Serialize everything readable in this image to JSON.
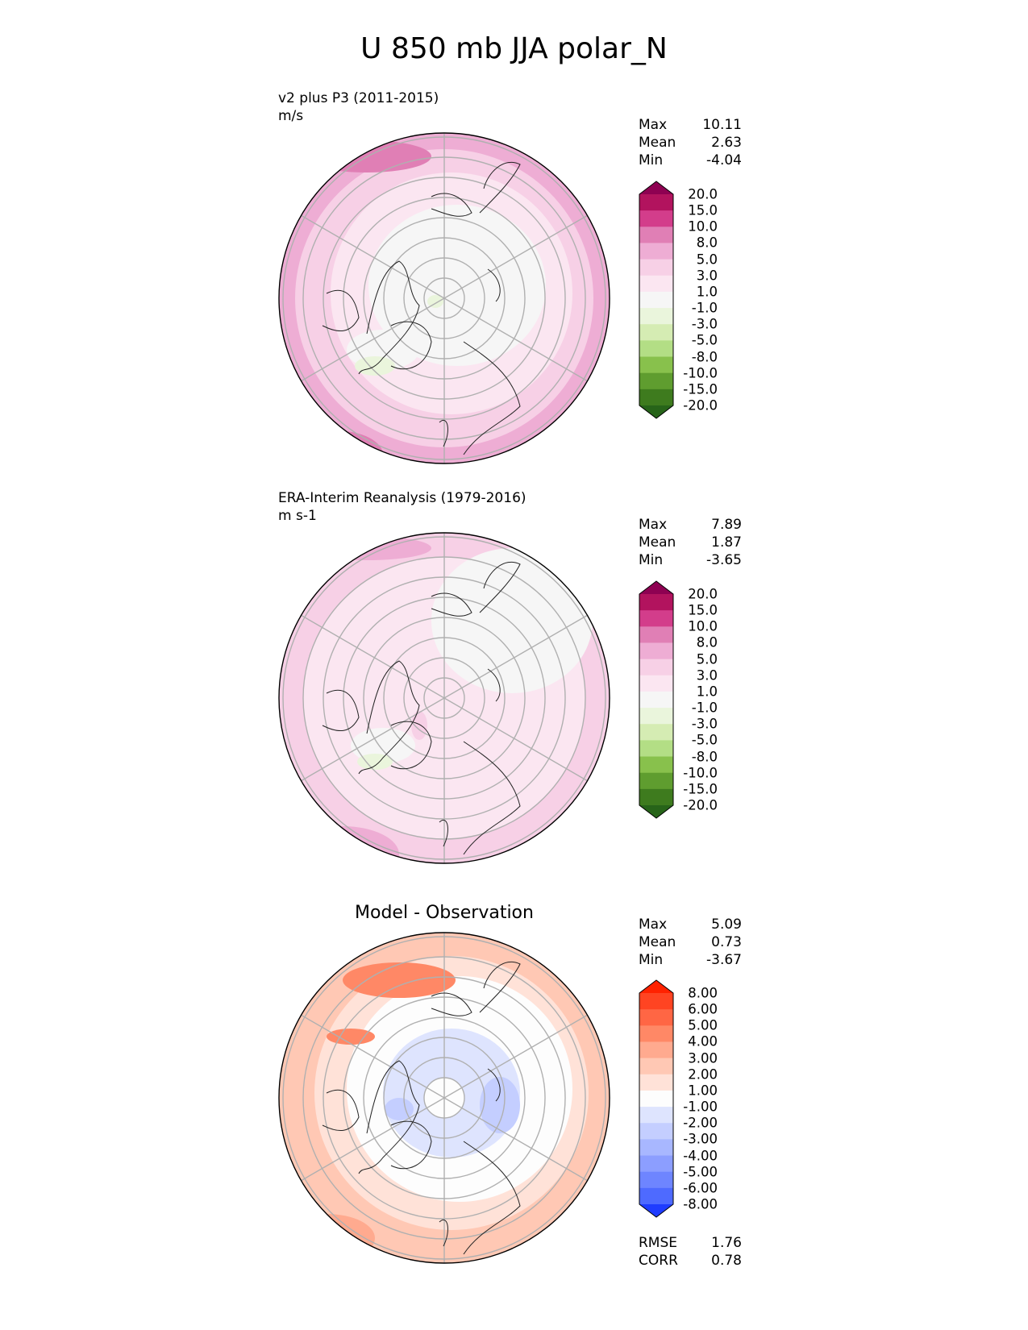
{
  "figure": {
    "title": "U 850 mb JJA polar_N"
  },
  "panels": [
    {
      "title_line1": "v2 plus P3 (2011-2015)",
      "title_line2": "m/s",
      "center_title": "",
      "stats": {
        "max_label": "Max",
        "max": "10.11",
        "mean_label": "Mean",
        "mean": "2.63",
        "min_label": "Min",
        "min": "-4.04"
      },
      "colorbar": {
        "labels": [
          "20.0",
          "15.0",
          "10.0",
          "8.0",
          "5.0",
          "3.0",
          "1.0",
          "-1.0",
          "-3.0",
          "-5.0",
          "-8.0",
          "-10.0",
          "-15.0",
          "-20.0"
        ],
        "colors": [
          "#8e0152",
          "#b2135e",
          "#d33d8b",
          "#e07fb5",
          "#eeadd4",
          "#f7d0e6",
          "#fbe6f1",
          "#f6f6f6",
          "#eaf5dc",
          "#d5ecb3",
          "#b3de85",
          "#88c14c",
          "#5f9d2f",
          "#3e7b1e",
          "#276419"
        ]
      }
    },
    {
      "title_line1": "ERA-Interim Reanalysis (1979-2016)",
      "title_line2": "m s-1",
      "center_title": "",
      "stats": {
        "max_label": "Max",
        "max": "7.89",
        "mean_label": "Mean",
        "mean": "1.87",
        "min_label": "Min",
        "min": "-3.65"
      },
      "colorbar": {
        "labels": [
          "20.0",
          "15.0",
          "10.0",
          "8.0",
          "5.0",
          "3.0",
          "1.0",
          "-1.0",
          "-3.0",
          "-5.0",
          "-8.0",
          "-10.0",
          "-15.0",
          "-20.0"
        ],
        "colors": [
          "#8e0152",
          "#b2135e",
          "#d33d8b",
          "#e07fb5",
          "#eeadd4",
          "#f7d0e6",
          "#fbe6f1",
          "#f6f6f6",
          "#eaf5dc",
          "#d5ecb3",
          "#b3de85",
          "#88c14c",
          "#5f9d2f",
          "#3e7b1e",
          "#276419"
        ]
      }
    },
    {
      "title_line1": "",
      "title_line2": "",
      "center_title": "Model - Observation",
      "stats": {
        "max_label": "Max",
        "max": "5.09",
        "mean_label": "Mean",
        "mean": "0.73",
        "min_label": "Min",
        "min": "-3.67"
      },
      "colorbar": {
        "labels": [
          "8.00",
          "6.00",
          "5.00",
          "4.00",
          "3.00",
          "2.00",
          "1.00",
          "-1.00",
          "-2.00",
          "-3.00",
          "-4.00",
          "-5.00",
          "-6.00",
          "-8.00"
        ],
        "colors": [
          "#ff2200",
          "#ff4422",
          "#ff6644",
          "#ff8866",
          "#ffaa8f",
          "#ffc8b4",
          "#ffe2d8",
          "#fdfdfd",
          "#dee4fe",
          "#c4ceff",
          "#a8b7ff",
          "#8c9eff",
          "#6e85ff",
          "#4e6aff",
          "#1f3cff"
        ]
      },
      "metrics": {
        "rmse_label": "RMSE",
        "rmse": "1.76",
        "corr_label": "CORR",
        "corr": "0.78"
      }
    }
  ],
  "chart_data": [
    {
      "type": "heatmap",
      "projection": "north-polar-stereographic",
      "title": "v2 plus P3 (2011-2015)",
      "units": "m/s",
      "variable": "U 850 mb JJA",
      "max": 10.11,
      "mean": 2.63,
      "min": -4.04,
      "levels": [
        -20,
        -15,
        -10,
        -8,
        -5,
        -3,
        -1,
        1,
        3,
        5,
        8,
        10,
        15,
        20
      ]
    },
    {
      "type": "heatmap",
      "projection": "north-polar-stereographic",
      "title": "ERA-Interim Reanalysis (1979-2016)",
      "units": "m s-1",
      "variable": "U 850 mb JJA",
      "max": 7.89,
      "mean": 1.87,
      "min": -3.65,
      "levels": [
        -20,
        -15,
        -10,
        -8,
        -5,
        -3,
        -1,
        1,
        3,
        5,
        8,
        10,
        15,
        20
      ]
    },
    {
      "type": "heatmap",
      "projection": "north-polar-stereographic",
      "title": "Model - Observation",
      "max": 5.09,
      "mean": 0.73,
      "min": -3.67,
      "rmse": 1.76,
      "corr": 0.78,
      "levels": [
        -8,
        -6,
        -5,
        -4,
        -3,
        -2,
        -1,
        1,
        2,
        3,
        4,
        5,
        6,
        8
      ]
    }
  ]
}
